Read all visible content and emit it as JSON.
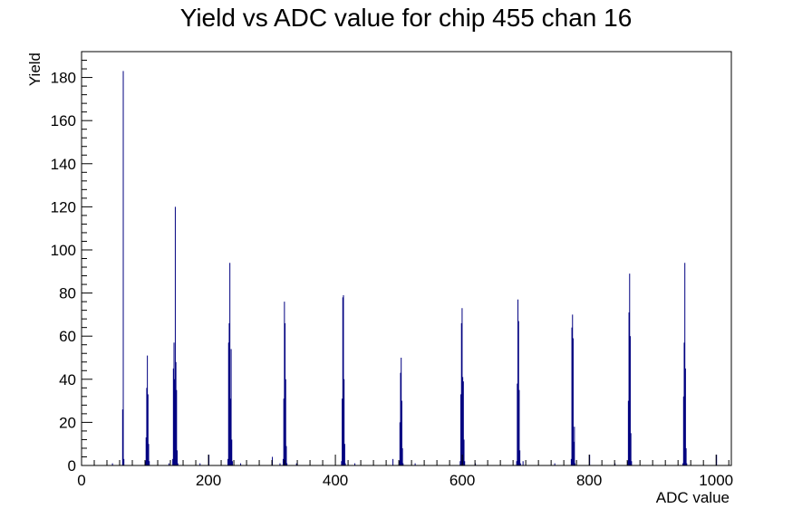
{
  "chart_data": {
    "type": "bar",
    "title": "Yield vs ADC value for chip 455 chan 16",
    "xlabel": "ADC value",
    "ylabel": "Yield",
    "xlim": [
      0,
      1024
    ],
    "ylim": [
      0,
      192
    ],
    "xticks": [
      0,
      200,
      400,
      600,
      800,
      1000
    ],
    "yticks": [
      0,
      20,
      40,
      60,
      80,
      100,
      120,
      140,
      160,
      180
    ],
    "grid": false,
    "color": "#000080",
    "bins": [
      [
        48,
        1
      ],
      [
        64,
        26
      ],
      [
        65,
        183
      ],
      [
        66,
        3
      ],
      [
        100,
        2
      ],
      [
        101,
        13
      ],
      [
        102,
        36
      ],
      [
        103,
        51
      ],
      [
        104,
        33
      ],
      [
        105,
        10
      ],
      [
        106,
        2
      ],
      [
        137,
        1
      ],
      [
        143,
        3
      ],
      [
        144,
        45
      ],
      [
        145,
        57
      ],
      [
        146,
        40
      ],
      [
        147,
        120
      ],
      [
        148,
        48
      ],
      [
        149,
        35
      ],
      [
        150,
        7
      ],
      [
        151,
        1
      ],
      [
        186,
        1
      ],
      [
        200,
        5
      ],
      [
        230,
        3
      ],
      [
        231,
        57
      ],
      [
        232,
        66
      ],
      [
        233,
        94
      ],
      [
        234,
        31
      ],
      [
        235,
        54
      ],
      [
        236,
        12
      ],
      [
        237,
        2
      ],
      [
        250,
        1
      ],
      [
        300,
        4
      ],
      [
        312,
        1
      ],
      [
        317,
        3
      ],
      [
        318,
        31
      ],
      [
        319,
        76
      ],
      [
        320,
        66
      ],
      [
        321,
        40
      ],
      [
        322,
        9
      ],
      [
        323,
        1
      ],
      [
        338,
        1
      ],
      [
        409,
        2
      ],
      [
        410,
        31
      ],
      [
        411,
        78
      ],
      [
        412,
        79
      ],
      [
        413,
        40
      ],
      [
        414,
        10
      ],
      [
        415,
        1
      ],
      [
        430,
        1
      ],
      [
        490,
        3
      ],
      [
        500,
        2
      ],
      [
        501,
        20
      ],
      [
        502,
        43
      ],
      [
        503,
        50
      ],
      [
        504,
        30
      ],
      [
        505,
        8
      ],
      [
        506,
        1
      ],
      [
        525,
        1
      ],
      [
        596,
        2
      ],
      [
        597,
        33
      ],
      [
        598,
        66
      ],
      [
        599,
        73
      ],
      [
        600,
        41
      ],
      [
        601,
        39
      ],
      [
        602,
        12
      ],
      [
        603,
        2
      ],
      [
        620,
        1
      ],
      [
        685,
        2
      ],
      [
        686,
        38
      ],
      [
        687,
        77
      ],
      [
        688,
        67
      ],
      [
        689,
        35
      ],
      [
        690,
        7
      ],
      [
        691,
        1
      ],
      [
        695,
        2
      ],
      [
        745,
        1
      ],
      [
        771,
        3
      ],
      [
        772,
        64
      ],
      [
        773,
        70
      ],
      [
        774,
        59
      ],
      [
        775,
        11
      ],
      [
        776,
        18
      ],
      [
        777,
        1
      ],
      [
        800,
        5
      ],
      [
        840,
        1
      ],
      [
        860,
        2
      ],
      [
        861,
        30
      ],
      [
        862,
        71
      ],
      [
        863,
        89
      ],
      [
        864,
        60
      ],
      [
        865,
        15
      ],
      [
        866,
        2
      ],
      [
        947,
        1
      ],
      [
        948,
        32
      ],
      [
        949,
        57
      ],
      [
        950,
        94
      ],
      [
        951,
        45
      ],
      [
        952,
        8
      ],
      [
        953,
        1
      ],
      [
        1000,
        5
      ]
    ]
  }
}
